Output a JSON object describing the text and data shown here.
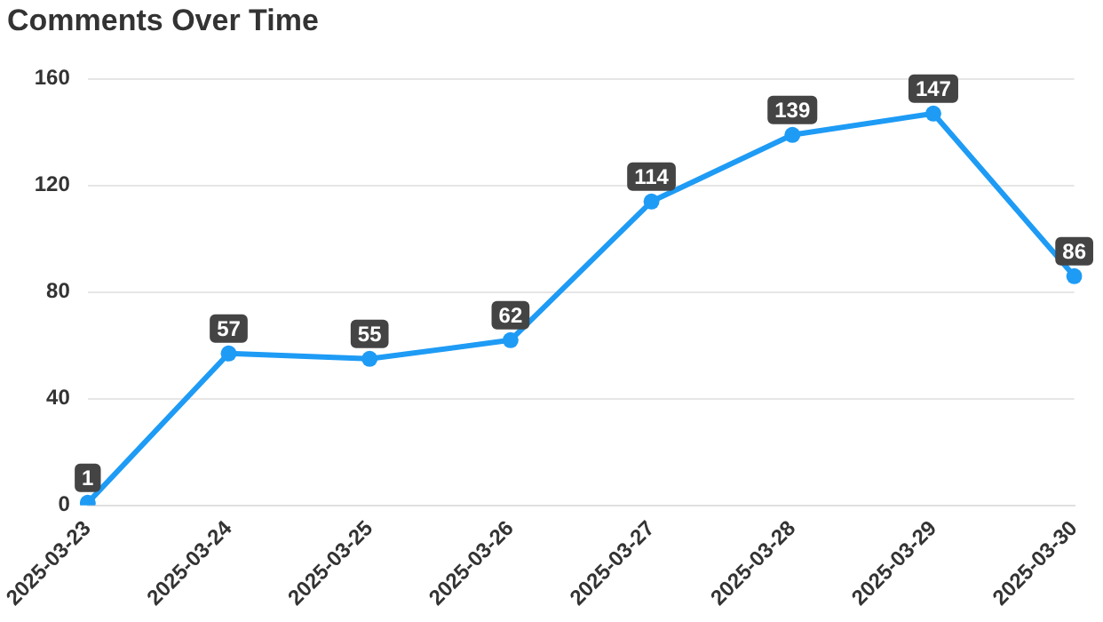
{
  "chart_data": {
    "type": "line",
    "title": "Comments Over Time",
    "categories": [
      "2025-03-23",
      "2025-03-24",
      "2025-03-25",
      "2025-03-26",
      "2025-03-27",
      "2025-03-28",
      "2025-03-29",
      "2025-03-30"
    ],
    "series": [
      {
        "color": "#1e9bf5",
        "values": [
          1,
          57,
          55,
          62,
          114,
          139,
          147,
          86
        ]
      }
    ],
    "ylim": [
      0,
      160
    ],
    "yticks": [
      0,
      40,
      80,
      120,
      160
    ],
    "grid": "y",
    "legend": false,
    "marker": "circle",
    "line_style": "solid",
    "data_labels": true
  }
}
